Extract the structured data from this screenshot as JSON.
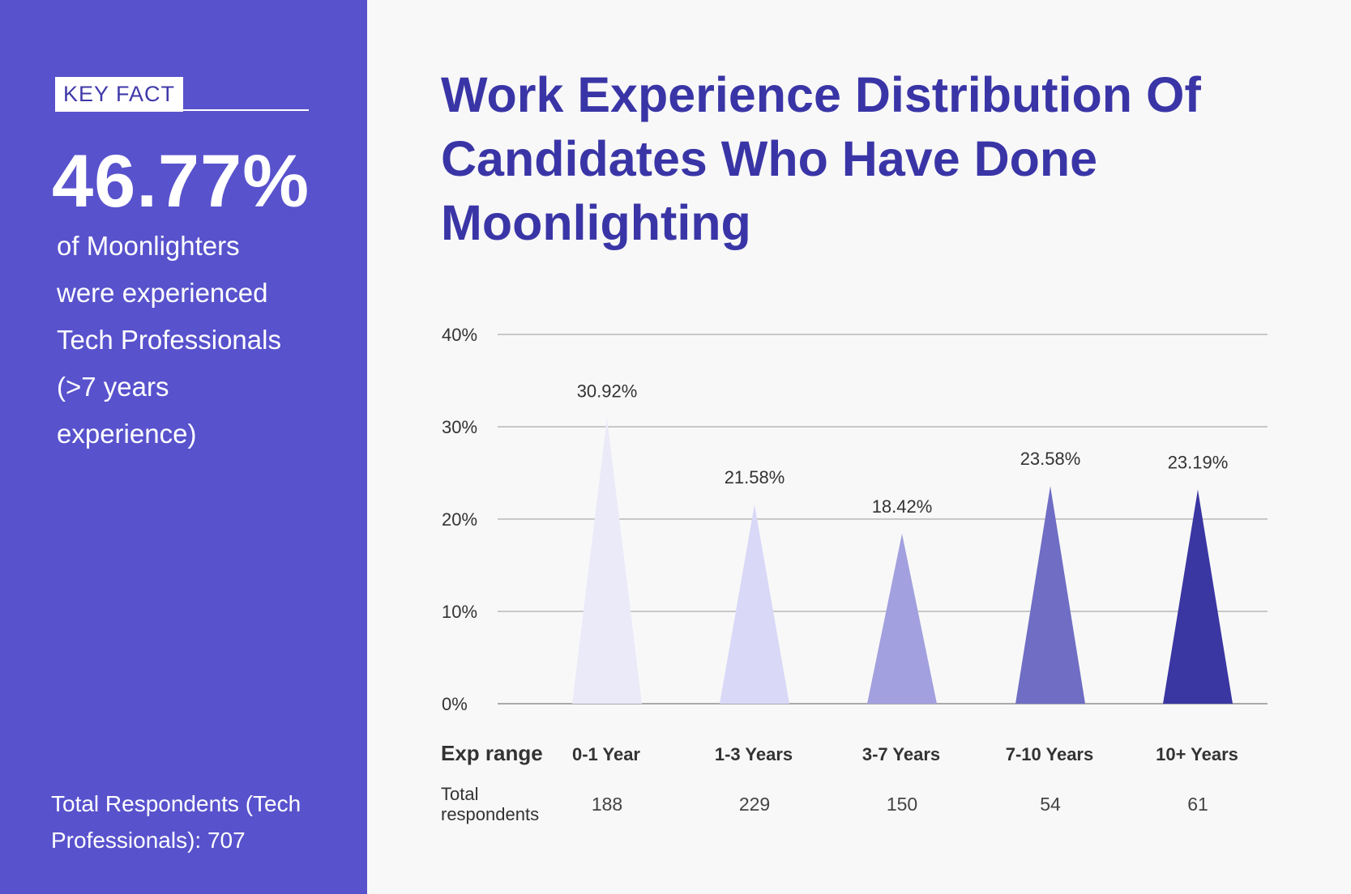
{
  "sidebar": {
    "key_fact_label": "KEY FACT",
    "key_stat": "46.77%",
    "description_lines": [
      "of Moonlighters",
      "were experienced",
      "Tech Professionals",
      "(>7 years",
      "experience)"
    ],
    "total_lines": [
      "Total Respondents (Tech",
      "Professionals): 707"
    ]
  },
  "colors": {
    "sidebar_bg": "#5852cd",
    "title": "#3a35a6",
    "background": "#f8f8f8"
  },
  "chart_data": {
    "type": "bar",
    "mark": "triangle",
    "title": "Work Experience Distribution Of Candidates Who Have Done Moonlighting",
    "categories": [
      "0-1 Year",
      "1-3 Years",
      "3-7 Years",
      "7-10 Years",
      "10+ Years"
    ],
    "values": [
      30.92,
      21.58,
      18.42,
      23.58,
      23.19
    ],
    "value_labels": [
      "30.92%",
      "21.58%",
      "18.42%",
      "23.58%",
      "23.19%"
    ],
    "colors": [
      "#ebeaf9",
      "#d9d8f7",
      "#a2a0de",
      "#6f6dc4",
      "#3a36a2"
    ],
    "ylim": [
      0,
      40
    ],
    "yticks": [
      0,
      10,
      20,
      30,
      40
    ],
    "ytick_labels": [
      "0%",
      "10%",
      "20%",
      "30%",
      "40%"
    ],
    "grid": true,
    "category_row_label": "Exp range",
    "respondents_row_label": [
      "Total",
      "respondents"
    ],
    "respondents": [
      "188",
      "229",
      "150",
      "54",
      "61"
    ]
  }
}
